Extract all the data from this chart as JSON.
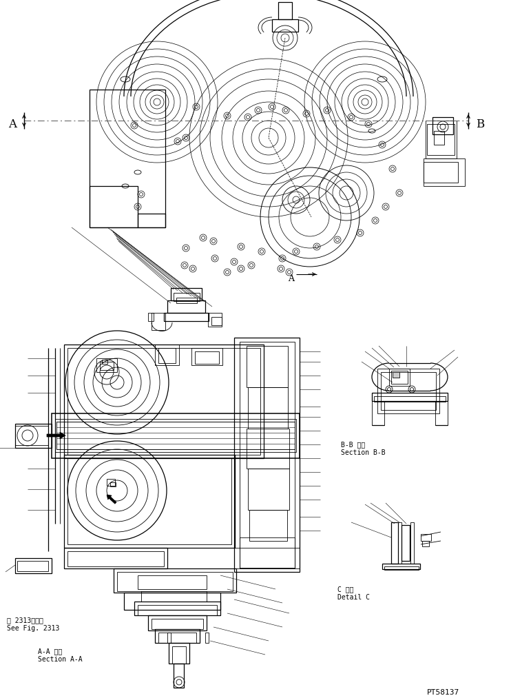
{
  "bg_color": "#ffffff",
  "line_color": "#000000",
  "lw": 0.6,
  "lw2": 0.9,
  "lw3": 1.1,
  "title_text": "PT58137",
  "label_aa": "A-A 断面\nSection A-A",
  "label_bb": "B-B 断面\nSection B-B",
  "label_c": "C 詳細\nDetail C",
  "label_fig": "第 2313図参照\nSee Fig. 2313",
  "fig_width": 7.42,
  "fig_height": 10.13
}
